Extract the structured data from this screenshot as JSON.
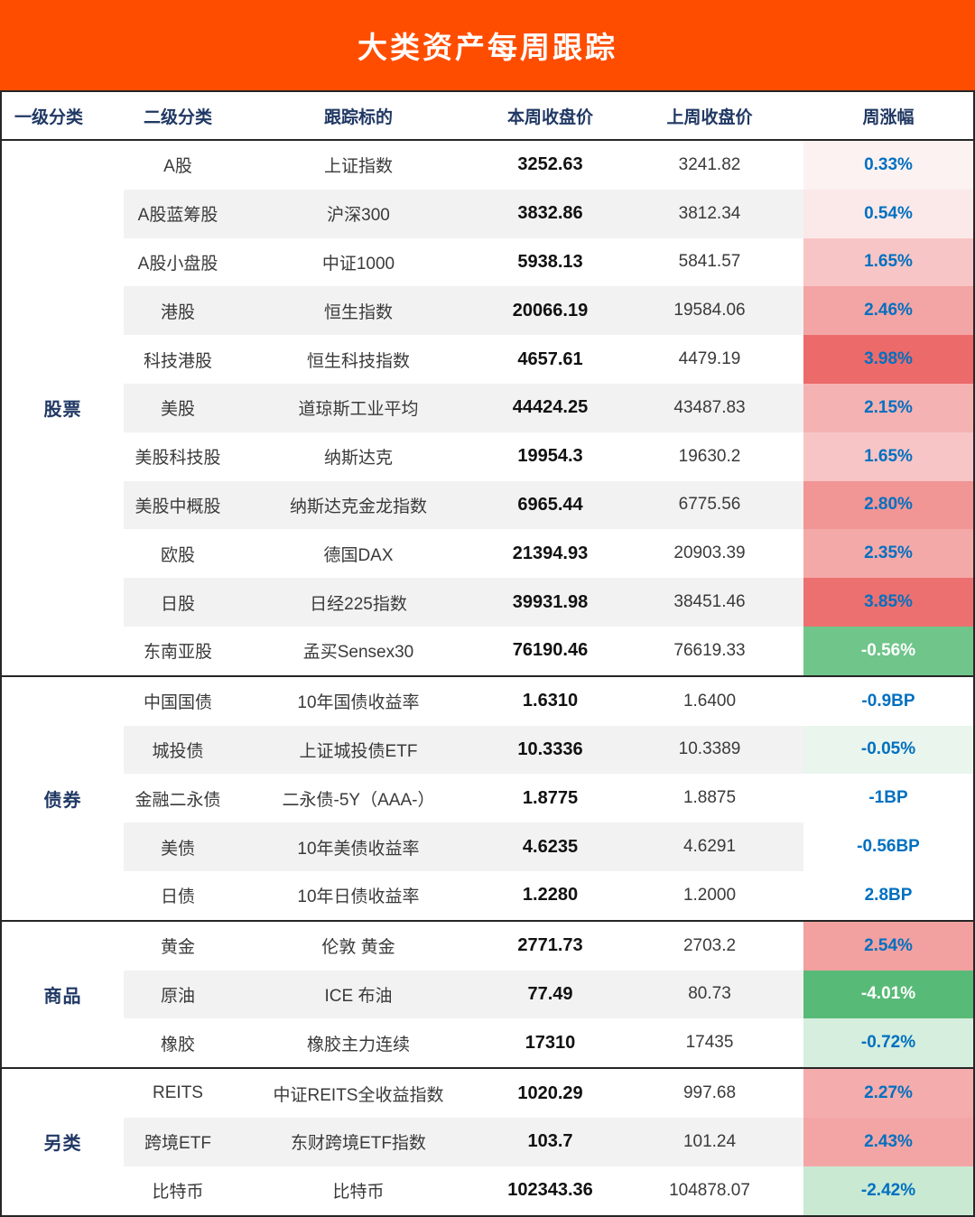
{
  "title": "大类资产每周跟踪",
  "theme": {
    "banner_bg": "#FF4D00",
    "banner_text": "#FFFFFF",
    "header_text": "#203864",
    "body_text": "#3A3A3A",
    "strong_text": "#111111",
    "change_text": "#0070C0",
    "stripe_bg": "#F2F2F2",
    "border_color": "#262626"
  },
  "chart_data": {
    "type": "table",
    "title": "大类资产每周跟踪",
    "columns": [
      "一级分类",
      "二级分类",
      "跟踪标的",
      "本周收盘价",
      "上周收盘价",
      "周涨幅"
    ],
    "sections": [
      {
        "category": "股票",
        "rows": [
          {
            "sub": "A股",
            "target": "上证指数",
            "this_week": "3252.63",
            "last_week": "3241.82",
            "change": "0.33%",
            "change_bg": "#FDF2F2"
          },
          {
            "sub": "A股蓝筹股",
            "target": "沪深300",
            "this_week": "3832.86",
            "last_week": "3812.34",
            "change": "0.54%",
            "change_bg": "#FBE9E9"
          },
          {
            "sub": "A股小盘股",
            "target": "中证1000",
            "this_week": "5938.13",
            "last_week": "5841.57",
            "change": "1.65%",
            "change_bg": "#F7C5C5"
          },
          {
            "sub": "港股",
            "target": "恒生指数",
            "this_week": "20066.19",
            "last_week": "19584.06",
            "change": "2.46%",
            "change_bg": "#F3A4A4"
          },
          {
            "sub": "科技港股",
            "target": "恒生科技指数",
            "this_week": "4657.61",
            "last_week": "4479.19",
            "change": "3.98%",
            "change_bg": "#EC6A6A"
          },
          {
            "sub": "美股",
            "target": "道琼斯工业平均",
            "this_week": "44424.25",
            "last_week": "43487.83",
            "change": "2.15%",
            "change_bg": "#F5B2B2"
          },
          {
            "sub": "美股科技股",
            "target": "纳斯达克",
            "this_week": "19954.3",
            "last_week": "19630.2",
            "change": "1.65%",
            "change_bg": "#F7C5C5"
          },
          {
            "sub": "美股中概股",
            "target": "纳斯达克金龙指数",
            "this_week": "6965.44",
            "last_week": "6775.56",
            "change": "2.80%",
            "change_bg": "#F19595"
          },
          {
            "sub": "欧股",
            "target": "德国DAX",
            "this_week": "21394.93",
            "last_week": "20903.39",
            "change": "2.35%",
            "change_bg": "#F4A9A9"
          },
          {
            "sub": "日股",
            "target": "日经225指数",
            "this_week": "39931.98",
            "last_week": "38451.46",
            "change": "3.85%",
            "change_bg": "#ED7070"
          },
          {
            "sub": "东南亚股",
            "target": "孟买Sensex30",
            "this_week": "76190.46",
            "last_week": "76619.33",
            "change": "-0.56%",
            "change_bg": "#6FC58A",
            "change_color": "#FFFFFF"
          }
        ]
      },
      {
        "category": "债券",
        "rows": [
          {
            "sub": "中国国债",
            "target": "10年国债收益率",
            "this_week": "1.6310",
            "last_week": "1.6400",
            "change": "-0.9BP",
            "change_bg": "#FFFFFF"
          },
          {
            "sub": "城投债",
            "target": "上证城投债ETF",
            "this_week": "10.3336",
            "last_week": "10.3389",
            "change": "-0.05%",
            "change_bg": "#E9F5ED"
          },
          {
            "sub": "金融二永债",
            "target": "二永债-5Y（AAA-）",
            "this_week": "1.8775",
            "last_week": "1.8875",
            "change": "-1BP",
            "change_bg": "#FFFFFF"
          },
          {
            "sub": "美债",
            "target": "10年美债收益率",
            "this_week": "4.6235",
            "last_week": "4.6291",
            "change": "-0.56BP",
            "change_bg": "#FFFFFF"
          },
          {
            "sub": "日债",
            "target": "10年日债收益率",
            "this_week": "1.2280",
            "last_week": "1.2000",
            "change": "2.8BP",
            "change_bg": "#FFFFFF"
          }
        ]
      },
      {
        "category": "商品",
        "rows": [
          {
            "sub": "黄金",
            "target": "伦敦 黄金",
            "this_week": "2771.73",
            "last_week": "2703.2",
            "change": "2.54%",
            "change_bg": "#F2A0A0"
          },
          {
            "sub": "原油",
            "target": "ICE 布油",
            "this_week": "77.49",
            "last_week": "80.73",
            "change": "-4.01%",
            "change_bg": "#58BA77",
            "change_color": "#FFFFFF"
          },
          {
            "sub": "橡胶",
            "target": "橡胶主力连续",
            "this_week": "17310",
            "last_week": "17435",
            "change": "-0.72%",
            "change_bg": "#D5EEDD"
          }
        ]
      },
      {
        "category": "另类",
        "rows": [
          {
            "sub": "REITS",
            "target": "中证REITS全收益指数",
            "this_week": "1020.29",
            "last_week": "997.68",
            "change": "2.27%",
            "change_bg": "#F4ACAC"
          },
          {
            "sub": "跨境ETF",
            "target": "东财跨境ETF指数",
            "this_week": "103.7",
            "last_week": "101.24",
            "change": "2.43%",
            "change_bg": "#F3A5A5"
          },
          {
            "sub": "比特币",
            "target": "比特币",
            "this_week": "102343.36",
            "last_week": "104878.07",
            "change": "-2.42%",
            "change_bg": "#C9E9D3"
          }
        ]
      }
    ]
  }
}
